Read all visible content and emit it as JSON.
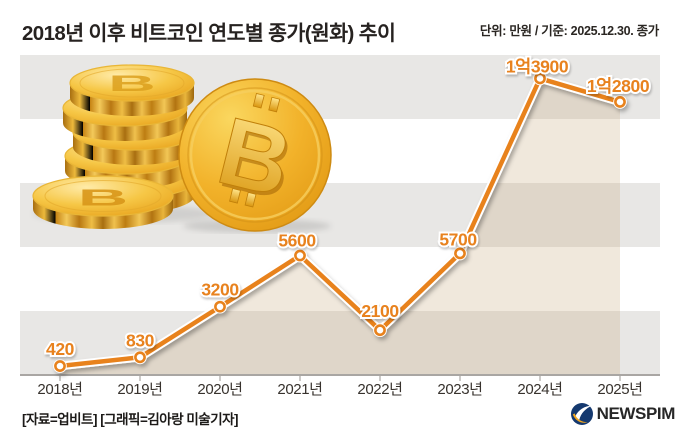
{
  "header": {
    "title": "2018년 이후 비트코인 연도별 종가(원화) 추이",
    "unit_note": "단위: 만원 / 기준: 2025.12.30. 종가"
  },
  "chart_data": {
    "type": "line",
    "title": "2018년 이후 비트코인 연도별 종가(원화) 추이",
    "unit": "만원",
    "categories": [
      "2018년",
      "2019년",
      "2020년",
      "2021년",
      "2022년",
      "2023년",
      "2024년",
      "2025년"
    ],
    "values": [
      420,
      830,
      3200,
      5600,
      2100,
      5700,
      13900,
      12800
    ],
    "value_labels": [
      "420",
      "830",
      "3200",
      "5600",
      "2100",
      "5700",
      "1억3900",
      "1억2800"
    ],
    "ylim": [
      0,
      15000
    ],
    "band_step": 3000,
    "grid": "alternating-horizontal-bands",
    "legend": "none",
    "line_color": "#E8821E",
    "marker": "white-circle-orange-ring",
    "area_filled": true
  },
  "colors": {
    "accent_orange": "#E8821E",
    "band_grey": "#E8E7E5",
    "area_fill": "rgba(201,172,128,0.28)",
    "axis_grey": "#A9A6A3",
    "text_dark": "#262220",
    "logo_navy": "#15396F",
    "logo_orange": "#F6A81C"
  },
  "footer": {
    "source_note": "[자료=업비트] [그래픽=김아랑 미술기자]",
    "logo_text": "NEWSPIM"
  },
  "icons": {
    "coins": "bitcoin-gold-coins-illustration",
    "logo_mark": "newspim-logo-icon"
  }
}
